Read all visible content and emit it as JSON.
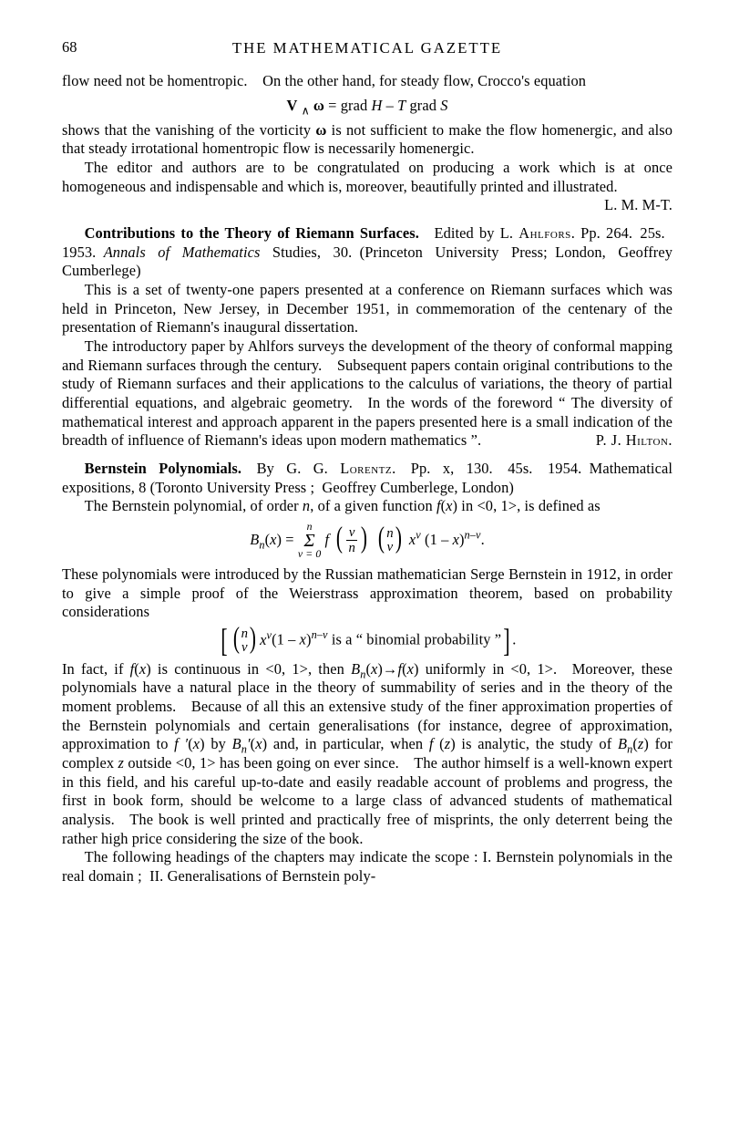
{
  "page_number": "68",
  "running_head": "THE MATHEMATICAL GAZETTE",
  "section1": {
    "p1": "flow need not be homentropic. On the other hand, for steady flow, Crocco's equation",
    "eq1_html": "<b>V</b> <sub>∧</sub> <b>ω</b> = grad <span class='ital'>H</span> – <span class='ital'>T</span> grad <span class='ital'>S</span>",
    "p2_html": "shows that the vanishing of the vorticity <b>ω</b> is not sufficient to make the flow homenergic, and also that steady irrotational homentropic flow is necessarily homenergic.",
    "p3": "The editor and authors are to be congratulated on producing a work which is at once homogeneous and indispensable and which is, moreover, beautifully printed and illustrated.",
    "sign1": "L. M. M-T."
  },
  "section2": {
    "p1_html": "<b>Contributions to the Theory of Riemann Surfaces.</b> Edited by L. <span class='sc'>Ahlfors</span>. Pp. 264. 25s. 1953. <span class='ital'>Annals of Mathematics</span> Studies, 30. (Princeton University Press; London, Geoffrey Cumberlege)",
    "p2": "This is a set of twenty-one papers presented at a conference on Riemann surfaces which was held in Princeton, New Jersey, in December 1951, in commemoration of the centenary of the presentation of Riemann's inaugural dissertation.",
    "p3": "The introductory paper by Ahlfors surveys the development of the theory of conformal mapping and Riemann surfaces through the century. Subsequent papers contain original contributions to the study of Riemann surfaces and their applications to the calculus of variations, the theory of partial differential equations, and algebraic geometry. In the words of the foreword “ The diversity of mathematical interest and approach apparent in the papers presented here is a small indication of the breadth of influence of Riemann's ideas upon modern mathematics ”.",
    "sign2": "P. J. Hilton."
  },
  "section3": {
    "p1_html": "<b>Bernstein Polynomials.</b> By G. G. <span class='sc'>Lorentz</span>. Pp. x, 130. 45s. 1954. Mathematical expositions, 8 (Toronto University Press ; Geoffrey Cumberlege, London)",
    "p2_html": "The Bernstein polynomial, of order <span class='ital'>n</span>, of a given function <span class='ital'>f</span>(<span class='ital'>x</span>) in &lt;0, 1&gt;, is defined as",
    "eq2_html": "<span class='ital'>B<sub>n</sub></span>(<span class='ital'>x</span>) = <span class='sumblock'><span class='top'>n</span><span class='sigma'>Σ</span><span class='bot'>ν = 0</span></span> <span class='ital'>f</span> <span class='binom'><span class='paren'>(</span><span class='frac'><span class='num ital'>ν</span><span class='den ital'>n</span></span><span class='paren'>)</span></span> <span class='binom'><span class='paren'>(</span><span class='stack'><span class='ital'>n</span><span class='ital'>ν</span></span><span class='paren'>)</span></span> <span class='ital'>x<sup>ν</sup></span> (1 – <span class='ital'>x</span>)<sup><span class='ital'>n–ν</span></sup>.",
    "p3": "These polynomials were introduced by the Russian mathematician Serge Bernstein in 1912, in order to give a simple proof of the Weierstrass approximation theorem, based on probability considerations",
    "eq3_html": "<span class='bigbr'>[</span><span class='binom'><span class='paren'>(</span><span class='stack'><span class='ital'>n</span><span class='ital'>ν</span></span><span class='paren'>)</span></span><span class='ital'>x<sup>ν</sup></span>(1 – <span class='ital'>x</span>)<sup><span class='ital'>n–v</span></sup> is a “ binomial probability ”<span class='bigbr'>]</span>.",
    "p4_html": "In fact, if <span class='ital'>f</span>(<span class='ital'>x</span>) is continuous in &lt;0, 1&gt;, then <span class='ital'>B<sub>n</sub></span>(<span class='ital'>x</span>)→<span class='ital'>f</span>(<span class='ital'>x</span>) uniformly in &lt;0, 1&gt;. Moreover, these polynomials have a natural place in the theory of summability of series and in the theory of the moment problems. Because of all this an extensive study of the finer approximation properties of the Bernstein polynomials and certain generalisations (for instance, degree of approximation, approximation to <span class='ital'>f ′</span>(<span class='ital'>x</span>) by <span class='ital'>B<sub>n</sub>′</span>(<span class='ital'>x</span>) and, in particular, when <span class='ital'>f</span> (<span class='ital'>z</span>) is analytic, the study of <span class='ital'>B<sub>n</sub></span>(<span class='ital'>z</span>) for complex <span class='ital'>z</span> outside &lt;0, 1&gt; has been going on ever since. The author himself is a well-known expert in this field, and his careful up-to-date and easily readable account of problems and progress, the first in book form, should be welcome to a large class of advanced students of mathematical analysis. The book is well printed and practically free of misprints, the only deterrent being the rather high price considering the size of the book.",
    "p5": "The following headings of the chapters may indicate the scope : I. Bernstein polynomials in the real domain ; II. Generalisations of Bernstein poly-"
  }
}
